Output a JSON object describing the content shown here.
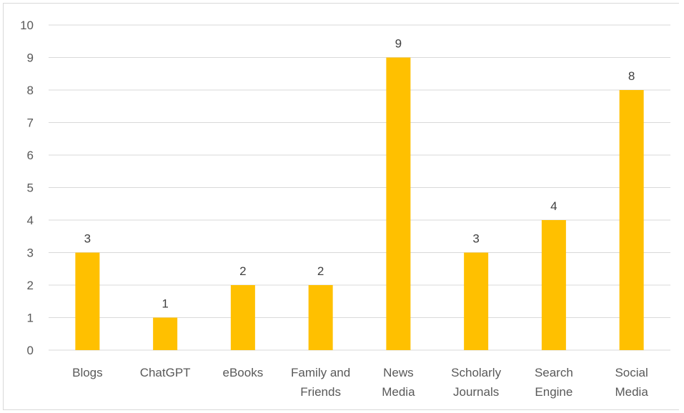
{
  "chart_data": {
    "type": "bar",
    "categories": [
      [
        "Blogs"
      ],
      [
        "ChatGPT"
      ],
      [
        "eBooks"
      ],
      [
        "Family and",
        "Friends"
      ],
      [
        "News",
        "Media"
      ],
      [
        "Scholarly",
        "Journals"
      ],
      [
        "Search",
        "Engine"
      ],
      [
        "Social",
        "Media"
      ]
    ],
    "values": [
      3,
      1,
      2,
      2,
      9,
      3,
      4,
      8
    ],
    "data_labels": [
      "3",
      "1",
      "2",
      "2",
      "9",
      "3",
      "4",
      "8"
    ],
    "y_ticks": [
      "0",
      "1",
      "2",
      "3",
      "4",
      "5",
      "6",
      "7",
      "8",
      "9",
      "10"
    ],
    "ylim": [
      0,
      10
    ],
    "grid": true,
    "legend": "none",
    "bar_color": "#FFC000",
    "grid_color": "#d9d9d9"
  }
}
